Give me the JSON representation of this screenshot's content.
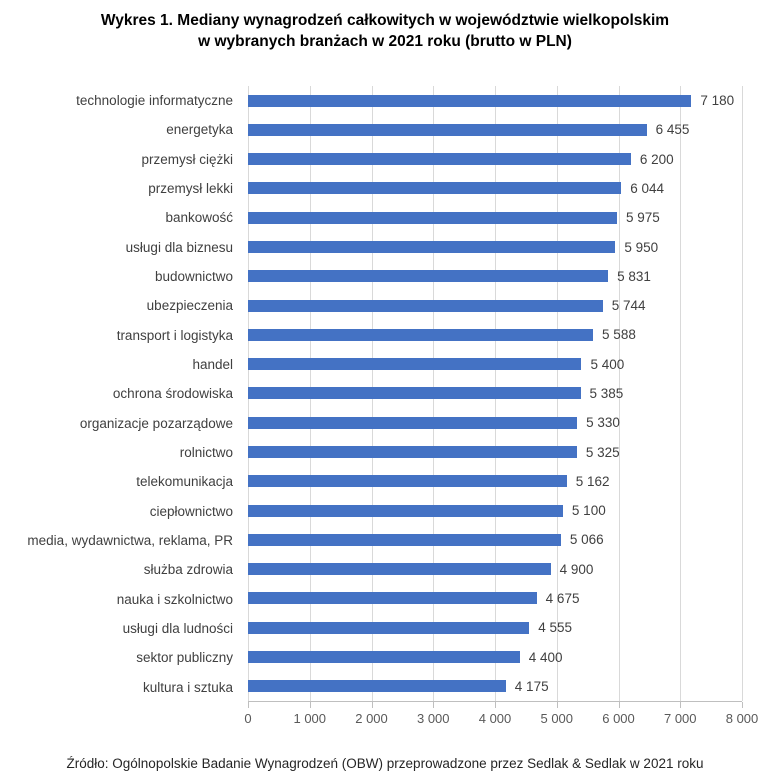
{
  "page": {
    "background": "#ffffff"
  },
  "title": {
    "line1": "Wykres 1. Mediany wynagrodzeń całkowitych w województwie wielkopolskim",
    "line2": "w wybranych branżach w 2021 roku (brutto w PLN)"
  },
  "source_note": "Źródło: Ogólnopolskie Badanie Wynagrodzeń (OBW) przeprowadzone przez Sedlak & Sedlak w 2021 roku",
  "chart_data": {
    "type": "bar",
    "orientation": "horizontal",
    "title": "Wykres 1. Mediany wynagrodzeń całkowitych w województwie wielkopolskim w wybranych branżach w 2021 roku (brutto w PLN)",
    "categories": [
      "technologie informatyczne",
      "energetyka",
      "przemysł ciężki",
      "przemysł lekki",
      "bankowość",
      "usługi dla biznesu",
      "budownictwo",
      "ubezpieczenia",
      "transport i logistyka",
      "handel",
      "ochrona środowiska",
      "organizacje pozarządowe",
      "rolnictwo",
      "telekomunikacja",
      "ciepłownictwo",
      "media, wydawnictwa, reklama, PR",
      "służba zdrowia",
      "nauka i szkolnictwo",
      "usługi dla ludności",
      "sektor publiczny",
      "kultura i sztuka"
    ],
    "values": [
      7180,
      6455,
      6200,
      6044,
      5975,
      5950,
      5831,
      5744,
      5588,
      5400,
      5385,
      5330,
      5325,
      5162,
      5100,
      5066,
      4900,
      4675,
      4555,
      4400,
      4175
    ],
    "value_labels": [
      "7 180",
      "6 455",
      "6 200",
      "6 044",
      "5 975",
      "5 950",
      "5 831",
      "5 744",
      "5 588",
      "5 400",
      "5 385",
      "5 330",
      "5 325",
      "5 162",
      "5 100",
      "5 066",
      "4 900",
      "4 675",
      "4 555",
      "4 400",
      "4 175"
    ],
    "xlabel": "",
    "ylabel": "",
    "xlim": [
      0,
      8000
    ],
    "x_ticks": [
      0,
      1000,
      2000,
      3000,
      4000,
      5000,
      6000,
      7000,
      8000
    ],
    "x_tick_labels": [
      "0",
      "1 000",
      "2 000",
      "3 000",
      "4 000",
      "5 000",
      "6 000",
      "7 000",
      "8 000"
    ],
    "grid": true,
    "legend": "none",
    "colors": {
      "bar": "#4472C4",
      "gridline": "#D9D9D9",
      "axis_line": "#BFBFBF",
      "label_text": "#404040",
      "tick_text": "#595959"
    }
  }
}
